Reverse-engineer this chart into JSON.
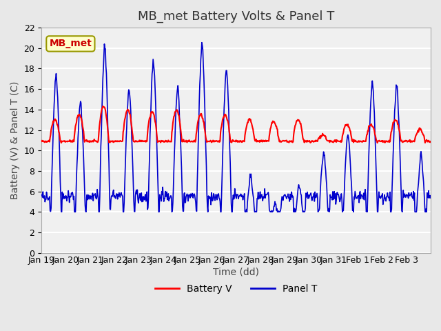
{
  "title": "MB_met Battery Volts & Panel T",
  "xlabel": "Time (dd)",
  "ylabel": "Battery (V) & Panel T (C)",
  "ylim": [
    0,
    22
  ],
  "yticks": [
    0,
    2,
    4,
    6,
    8,
    10,
    12,
    14,
    16,
    18,
    20,
    22
  ],
  "x_tick_labels": [
    "Jan 19",
    "Jan 20",
    "Jan 21",
    "Jan 22",
    "Jan 23",
    "Jan 24",
    "Jan 25",
    "Jan 26",
    "Jan 27",
    "Jan 28",
    "Jan 29",
    "Jan 30",
    "Jan 31",
    "Feb 1",
    "Feb 2",
    "Feb 3"
  ],
  "station_label": "MB_met",
  "station_label_color": "#cc0000",
  "station_box_facecolor": "#ffffcc",
  "station_box_edgecolor": "#999900",
  "fig_bg_color": "#e8e8e8",
  "plot_bg_color": "#f0f0f0",
  "grid_color": "#ffffff",
  "battery_color": "#ff0000",
  "panel_color": "#0000cc",
  "legend_battery": "Battery V",
  "legend_panel": "Panel T",
  "title_fontsize": 13,
  "axis_label_fontsize": 10,
  "tick_fontsize": 9,
  "days": 16,
  "pts_per_day": 48,
  "panel_peak_heights": [
    17.5,
    14.8,
    20.3,
    16.2,
    19.0,
    16.3,
    20.7,
    18.0,
    7.5,
    4.8,
    6.5,
    9.7,
    11.8,
    16.7,
    16.5,
    9.5
  ],
  "batt_peaks": [
    13.0,
    13.5,
    14.3,
    14.0,
    13.8,
    14.0,
    13.5,
    13.5,
    13.0,
    12.8,
    13.0,
    11.5,
    12.5,
    12.5,
    13.0,
    12.0
  ]
}
